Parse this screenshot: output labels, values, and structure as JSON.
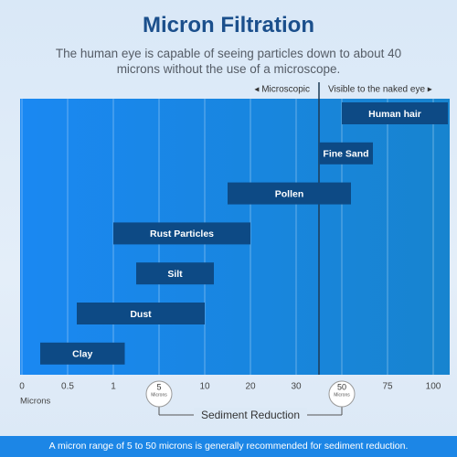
{
  "chart_data": {
    "type": "range_bar",
    "title": "Micron Filtration",
    "subtitle": "The human eye is capable of seeing particles down to about 40 microns without the use of a microscope.",
    "x_label": "Microns",
    "categories": [
      "Human hair",
      "Fine Sand",
      "Pollen",
      "Rust Particles",
      "Silt",
      "Dust",
      "Clay"
    ],
    "starts": [
      50,
      40,
      15,
      1,
      3,
      0.6,
      0.2
    ],
    "ends": [
      108,
      67,
      55,
      20,
      12,
      10,
      2
    ],
    "color": "#0d4a85",
    "xlim": [
      0,
      110
    ],
    "xticks": [
      0,
      0.5,
      1,
      5,
      10,
      20,
      30,
      50,
      75,
      100
    ],
    "x_scale": "piecewise",
    "grid": true,
    "threshold": {
      "value": 40,
      "left_label": "◂ Microscopic",
      "right_label": "Visible to the naked eye ▸"
    },
    "markers": {
      "values": [
        5,
        50
      ],
      "label": "Microns",
      "range_label": "Sediment Reduction"
    },
    "note": "A micron range of 5 to 50 microns is generally recommended for sediment reduction."
  }
}
